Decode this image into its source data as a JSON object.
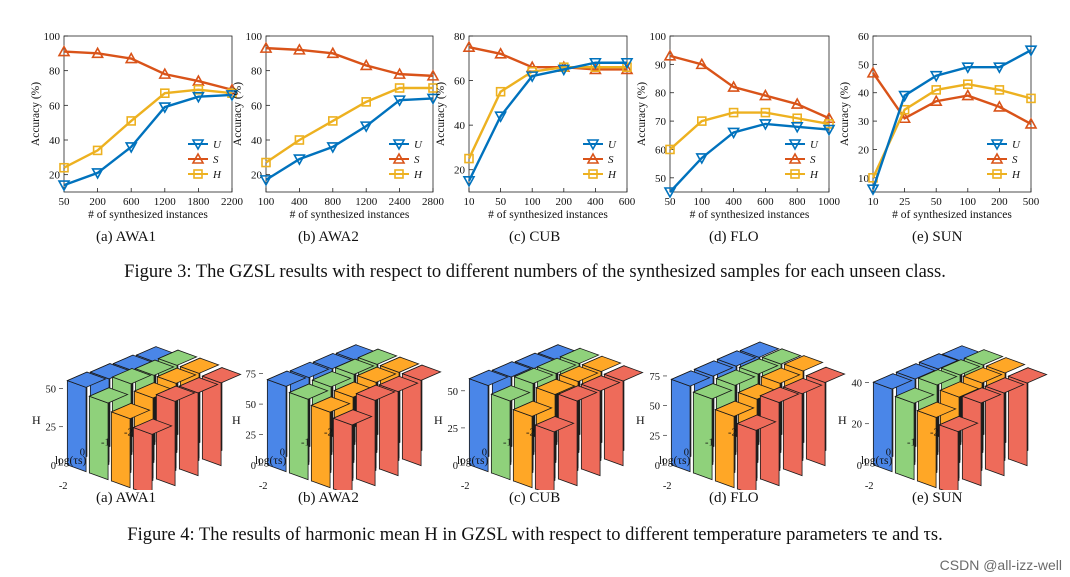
{
  "figure3": {
    "caption": "Figure 3: The GZSL results with respect to different numbers of the synthesized samples for each unseen class.",
    "subcaptions": [
      "(a) AWA1",
      "(b) AWA2",
      "(c) CUB",
      "(d) FLO",
      "(e) SUN"
    ]
  },
  "figure4": {
    "caption": "Figure 4: The results of harmonic mean H in GZSL with respect to different temperature parameters τe and τs.",
    "subcaptions": [
      "(a) AWA1",
      "(b) AWA2",
      "(c) CUB",
      "(d) FLO",
      "(e) SUN"
    ]
  },
  "watermark": "CSDN @all-izz-well",
  "colors": {
    "U": "#0072BD",
    "S": "#D95319",
    "H": "#EDB120"
  },
  "chart_data": [
    {
      "type": "line",
      "xlabel": "# of synthesized instances",
      "ylabel": "Accuracy (%)",
      "categories": [
        "50",
        "200",
        "600",
        "1200",
        "1800",
        "2200"
      ],
      "ylim": [
        10,
        100
      ],
      "yticks": [
        "20",
        "40",
        "60",
        "80",
        "100"
      ],
      "series": [
        {
          "name": "U",
          "values": [
            14,
            21,
            36,
            59,
            65,
            66
          ]
        },
        {
          "name": "S",
          "values": [
            91,
            90,
            87,
            78,
            74,
            69
          ]
        },
        {
          "name": "H",
          "values": [
            24,
            34,
            51,
            67,
            69,
            67
          ]
        }
      ]
    },
    {
      "type": "line",
      "xlabel": "# of synthesized instances",
      "ylabel": "Accuracy (%)",
      "categories": [
        "100",
        "400",
        "800",
        "1200",
        "2400",
        "2800"
      ],
      "ylim": [
        10,
        100
      ],
      "yticks": [
        "20",
        "40",
        "60",
        "80",
        "100"
      ],
      "series": [
        {
          "name": "U",
          "values": [
            17,
            29,
            36,
            48,
            63,
            64
          ]
        },
        {
          "name": "S",
          "values": [
            93,
            92,
            90,
            83,
            78,
            77
          ]
        },
        {
          "name": "H",
          "values": [
            27,
            40,
            51,
            62,
            70,
            70
          ]
        }
      ]
    },
    {
      "type": "line",
      "xlabel": "# of synthesized instances",
      "ylabel": "Accuracy (%)",
      "categories": [
        "10",
        "50",
        "100",
        "200",
        "400",
        "600"
      ],
      "ylim": [
        10,
        80
      ],
      "yticks": [
        "20",
        "40",
        "60",
        "80"
      ],
      "series": [
        {
          "name": "U",
          "values": [
            15,
            44,
            62,
            65,
            68,
            68
          ]
        },
        {
          "name": "S",
          "values": [
            75,
            72,
            66,
            66,
            65,
            65
          ]
        },
        {
          "name": "H",
          "values": [
            25,
            55,
            64,
            66,
            66,
            66
          ]
        }
      ]
    },
    {
      "type": "line",
      "xlabel": "# of synthesized instances",
      "ylabel": "Accuracy (%)",
      "categories": [
        "50",
        "100",
        "400",
        "600",
        "800",
        "1000"
      ],
      "ylim": [
        45,
        100
      ],
      "yticks": [
        "50",
        "60",
        "70",
        "80",
        "90",
        "100"
      ],
      "series": [
        {
          "name": "U",
          "values": [
            45,
            57,
            66,
            69,
            68,
            67
          ]
        },
        {
          "name": "S",
          "values": [
            93,
            90,
            82,
            79,
            76,
            71
          ]
        },
        {
          "name": "H",
          "values": [
            60,
            70,
            73,
            73,
            71,
            69
          ]
        }
      ]
    },
    {
      "type": "line",
      "xlabel": "# of synthesized instances",
      "ylabel": "Accuracy (%)",
      "categories": [
        "10",
        "25",
        "50",
        "100",
        "200",
        "500"
      ],
      "ylim": [
        5,
        60
      ],
      "yticks": [
        "10",
        "20",
        "30",
        "40",
        "50",
        "60"
      ],
      "series": [
        {
          "name": "U",
          "values": [
            6,
            39,
            46,
            49,
            49,
            55
          ]
        },
        {
          "name": "S",
          "values": [
            47,
            31,
            37,
            39,
            35,
            29
          ]
        },
        {
          "name": "H",
          "values": [
            10,
            34,
            41,
            43,
            41,
            38
          ]
        }
      ]
    },
    {
      "type": "bar3d",
      "zlabel": "H",
      "xlabel": "log(τs)",
      "ylabel": "log(τe)",
      "xticks": [
        "-2",
        "-1",
        "0",
        "1"
      ],
      "yticks": [
        "-2",
        "-1",
        "0",
        "1"
      ],
      "zticks": [
        "0",
        "25",
        "50"
      ],
      "zmax": 62,
      "colors": [
        "#4A86E8",
        "#8FD17B",
        "#FFA726",
        "#EE6B5A"
      ],
      "heights": [
        [
          55,
          50,
          45,
          40
        ],
        [
          54,
          56,
          52,
          55
        ],
        [
          53,
          55,
          55,
          54
        ],
        [
          52,
          55,
          55,
          54
        ]
      ]
    },
    {
      "type": "bar3d",
      "zlabel": "H",
      "xlabel": "log(τs)",
      "ylabel": "log(τe)",
      "xticks": [
        "-2",
        "-1",
        "0",
        "1"
      ],
      "yticks": [
        "-2",
        "-1",
        "0",
        "1"
      ],
      "zticks": [
        "0",
        "25",
        "50",
        "75"
      ],
      "zmax": 78,
      "colors": [
        "#4A86E8",
        "#8FD17B",
        "#FFA726",
        "#EE6B5A"
      ],
      "heights": [
        [
          70,
          66,
          62,
          58
        ],
        [
          69,
          68,
          66,
          70
        ],
        [
          68,
          70,
          70,
          69
        ],
        [
          67,
          70,
          70,
          70
        ]
      ]
    },
    {
      "type": "bar3d",
      "zlabel": "H",
      "xlabel": "log(τs)",
      "ylabel": "log(τe)",
      "xticks": [
        "-2",
        "-1",
        "0",
        "1"
      ],
      "yticks": [
        "-2",
        "-1",
        "0",
        "1"
      ],
      "zticks": [
        "0",
        "25",
        "50"
      ],
      "zmax": 64,
      "colors": [
        "#4A86E8",
        "#8FD17B",
        "#FFA726",
        "#EE6B5A"
      ],
      "heights": [
        [
          58,
          53,
          48,
          43
        ],
        [
          57,
          58,
          56,
          57
        ],
        [
          56,
          58,
          58,
          57
        ],
        [
          55,
          58,
          58,
          57
        ]
      ]
    },
    {
      "type": "bar3d",
      "zlabel": "H",
      "xlabel": "log(τs)",
      "ylabel": "log(τe)",
      "xticks": [
        "-2",
        "-1",
        "0",
        "1"
      ],
      "yticks": [
        "-2",
        "-1",
        "0",
        "1"
      ],
      "zticks": [
        "0",
        "25",
        "50",
        "75"
      ],
      "zmax": 80,
      "colors": [
        "#4A86E8",
        "#8FD17B",
        "#FFA726",
        "#EE6B5A"
      ],
      "heights": [
        [
          72,
          68,
          60,
          55
        ],
        [
          72,
          71,
          66,
          70
        ],
        [
          72,
          72,
          71,
          69
        ],
        [
          71,
          72,
          73,
          70
        ]
      ]
    },
    {
      "type": "bar3d",
      "zlabel": "H",
      "xlabel": "log(τs)",
      "ylabel": "log(τe)",
      "xticks": [
        "-2",
        "-1",
        "0",
        "1"
      ],
      "yticks": [
        "-2",
        "-1",
        "0",
        "1"
      ],
      "zticks": [
        "0",
        "20",
        "40"
      ],
      "zmax": 46,
      "colors": [
        "#4A86E8",
        "#8FD17B",
        "#FFA726",
        "#EE6B5A"
      ],
      "heights": [
        [
          40,
          37,
          34,
          31
        ],
        [
          40,
          41,
          39,
          40
        ],
        [
          40,
          41,
          41,
          40
        ],
        [
          39,
          41,
          41,
          40
        ]
      ]
    }
  ]
}
